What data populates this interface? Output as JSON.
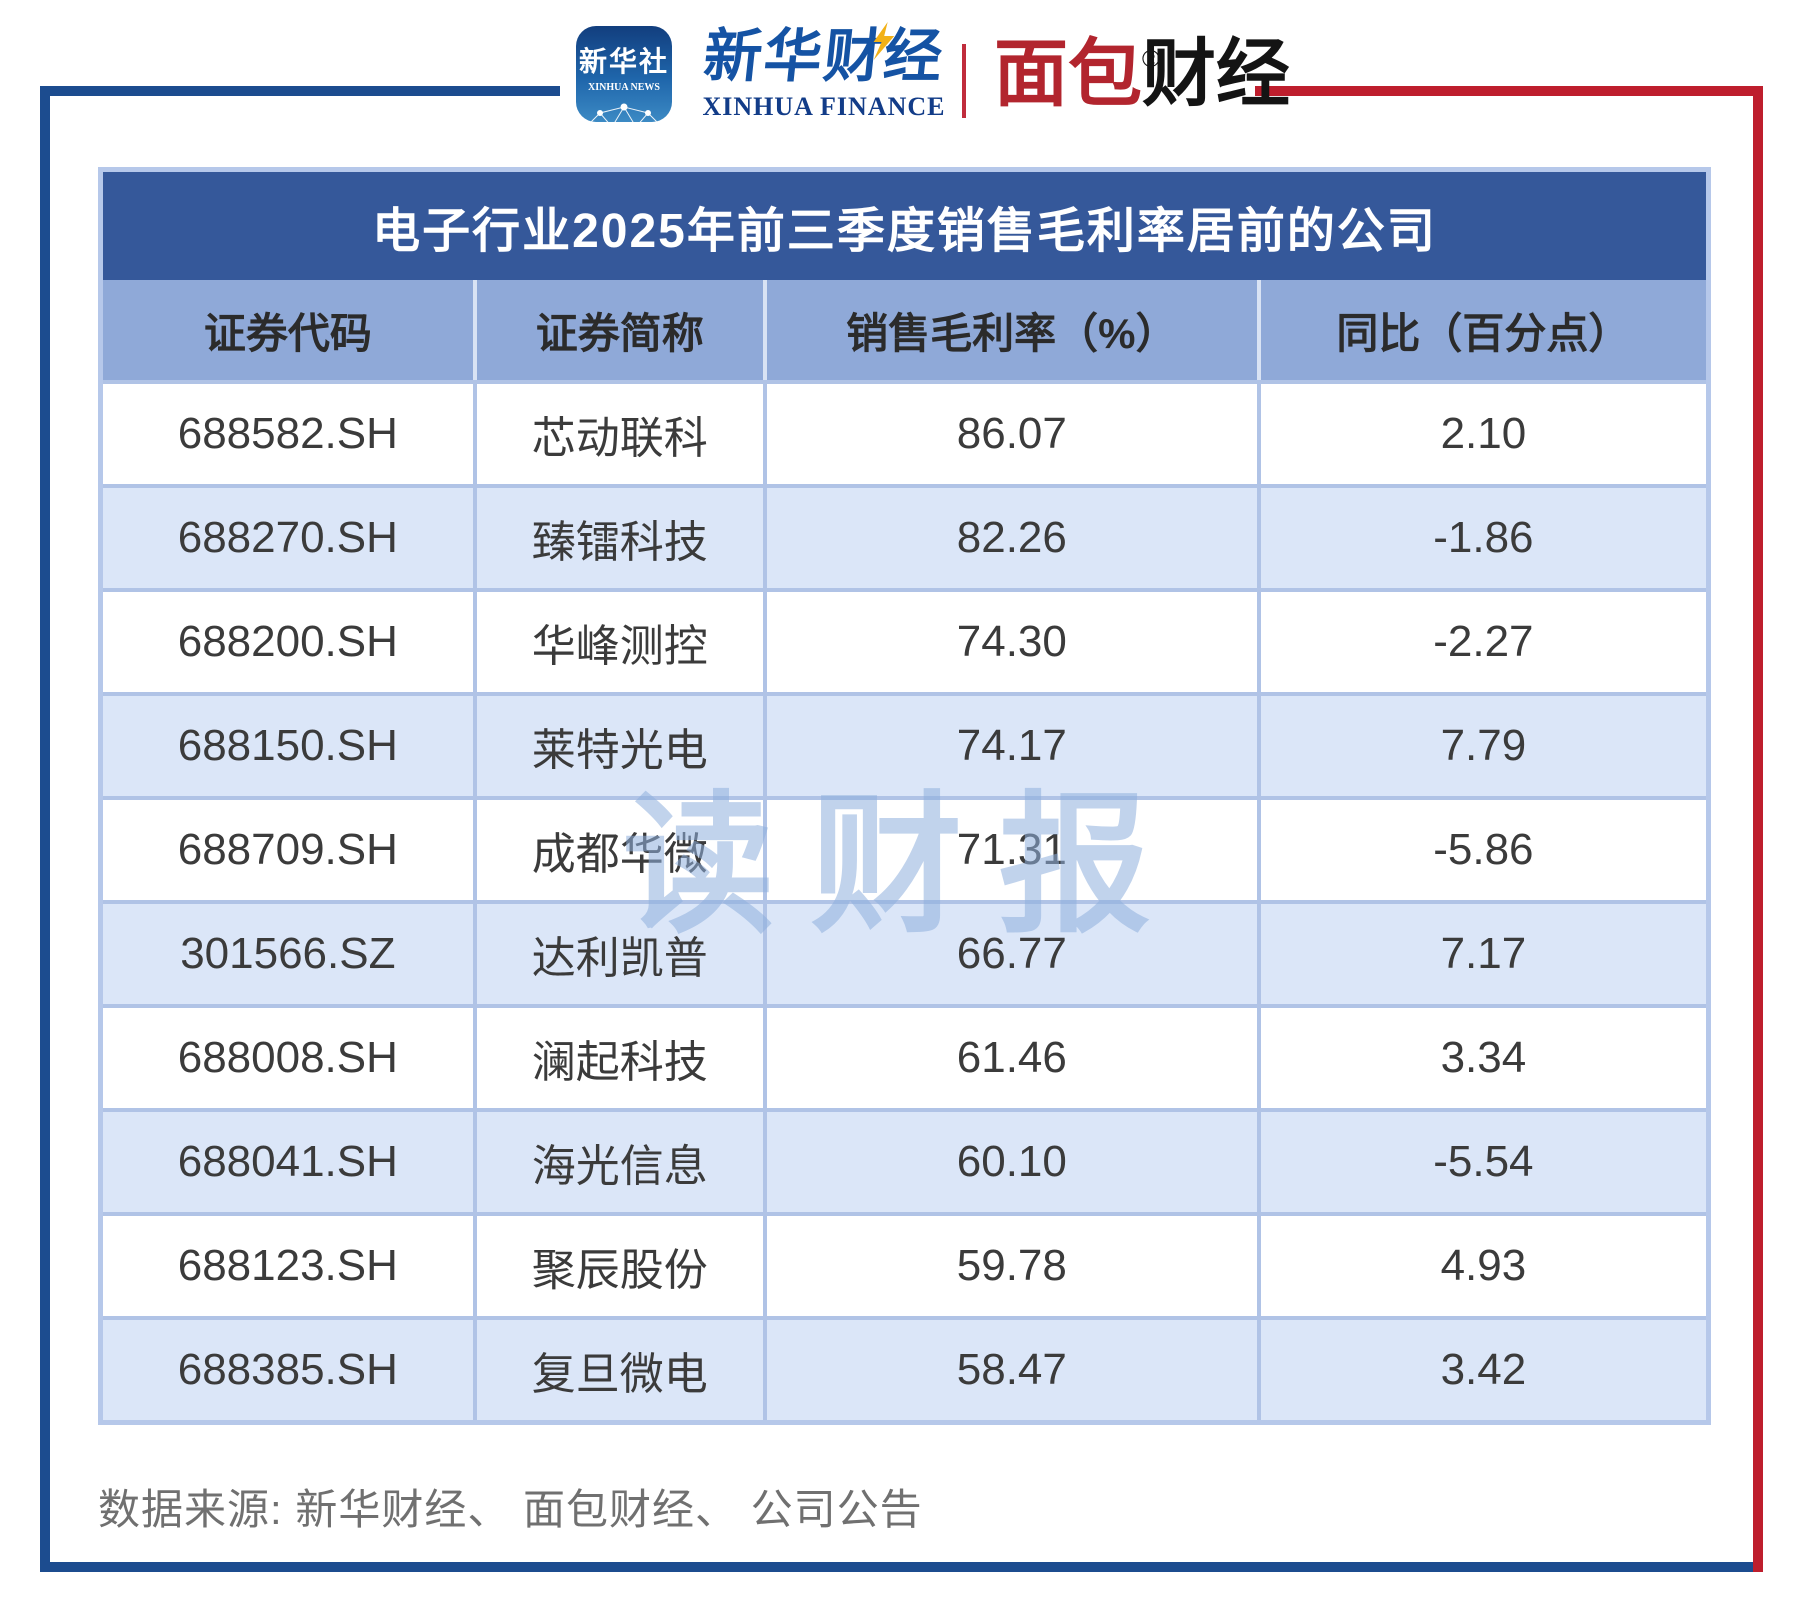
{
  "header": {
    "xinhua_icon": {
      "cn": "新华社",
      "en": "XINHUA NEWS"
    },
    "xinhua_finance": {
      "cn": "新华财经",
      "en": "XINHUA FINANCE"
    },
    "mianbao": {
      "red_part": "面包",
      "black_part": "财经",
      "reg_mark": "®"
    }
  },
  "table": {
    "title": "电子行业2025年前三季度销售毛利率居前的公司",
    "columns": [
      "证券代码",
      "证券简称",
      "销售毛利率（%）",
      "同比（百分点）"
    ],
    "rows": [
      {
        "code": "688582.SH",
        "name": "芯动联科",
        "margin": "86.07",
        "yoy": "2.10"
      },
      {
        "code": "688270.SH",
        "name": "臻镭科技",
        "margin": "82.26",
        "yoy": "-1.86"
      },
      {
        "code": "688200.SH",
        "name": "华峰测控",
        "margin": "74.30",
        "yoy": "-2.27"
      },
      {
        "code": "688150.SH",
        "name": "莱特光电",
        "margin": "74.17",
        "yoy": "7.79"
      },
      {
        "code": "688709.SH",
        "name": "成都华微",
        "margin": "71.31",
        "yoy": "-5.86"
      },
      {
        "code": "301566.SZ",
        "name": "达利凯普",
        "margin": "66.77",
        "yoy": "7.17"
      },
      {
        "code": "688008.SH",
        "name": "澜起科技",
        "margin": "61.46",
        "yoy": "3.34"
      },
      {
        "code": "688041.SH",
        "name": "海光信息",
        "margin": "60.10",
        "yoy": "-5.54"
      },
      {
        "code": "688123.SH",
        "name": "聚辰股份",
        "margin": "59.78",
        "yoy": "4.93"
      },
      {
        "code": "688385.SH",
        "name": "复旦微电",
        "margin": "58.47",
        "yoy": "3.42"
      }
    ]
  },
  "watermark": "读财报",
  "footer": {
    "source": "数据来源: 新华财经、 面包财经、 公司公告"
  },
  "colors": {
    "frame_blue": "#1c4c8f",
    "frame_red": "#be1e2d",
    "title_bg": "#35589a",
    "header_bg": "#8fa9d8",
    "row_alt_bg": "#dbe6f8",
    "grid_line": "#b0c3e6",
    "watermark": "#8fb0dd",
    "mianbao_red": "#b2252e",
    "xinhua_blue": "#1553a4"
  }
}
